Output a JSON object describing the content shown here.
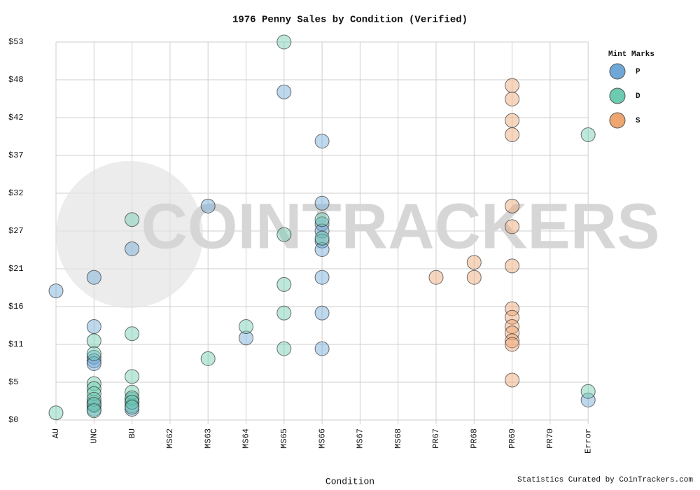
{
  "chart_data": {
    "type": "scatter",
    "title": "1976 Penny Sales by Condition (Verified)",
    "x_label": "Condition",
    "footer": "Statistics Curated by CoinTrackers.com",
    "watermark": "COINTRACKERS",
    "legend_title": "Mint Marks",
    "legend_position": "upper right",
    "grid": true,
    "categories": [
      "AU",
      "UNC",
      "BU",
      "MS62",
      "MS63",
      "MS64",
      "MS65",
      "MS66",
      "MS67",
      "MS68",
      "PR67",
      "PR68",
      "PR69",
      "PR70",
      "Error"
    ],
    "ylim": [
      0,
      53
    ],
    "yticks": [
      {
        "value": 0,
        "label": "$0"
      },
      {
        "value": 5.3,
        "label": "$5"
      },
      {
        "value": 10.6,
        "label": "$11"
      },
      {
        "value": 15.9,
        "label": "$16"
      },
      {
        "value": 21.2,
        "label": "$21"
      },
      {
        "value": 26.5,
        "label": "$27"
      },
      {
        "value": 31.8,
        "label": "$32"
      },
      {
        "value": 37.1,
        "label": "$37"
      },
      {
        "value": 42.4,
        "label": "$42"
      },
      {
        "value": 47.7,
        "label": "$48"
      },
      {
        "value": 53,
        "label": "$53"
      }
    ],
    "series": [
      {
        "name": "P",
        "color": "#6fa8d6",
        "x": [
          "AU",
          "UNC",
          "UNC",
          "UNC",
          "UNC",
          "UNC",
          "UNC",
          "UNC",
          "UNC",
          "BU",
          "BU",
          "BU",
          "BU",
          "BU",
          "MS63",
          "MS64",
          "MS65",
          "MS66",
          "MS66",
          "MS66",
          "MS66",
          "MS66",
          "MS66",
          "MS66",
          "MS66",
          "MS66",
          "Error"
        ],
        "values": [
          18.1,
          20.0,
          13.1,
          8.8,
          8.3,
          7.9,
          2.5,
          2.0,
          1.5,
          24.0,
          2.9,
          2.5,
          2.0,
          1.5,
          30.0,
          11.5,
          46.0,
          39.1,
          30.4,
          27.5,
          26.5,
          25.1,
          23.9,
          20.0,
          15.0,
          10.0,
          2.8
        ]
      },
      {
        "name": "D",
        "color": "#6ccbb0",
        "x": [
          "AU",
          "UNC",
          "UNC",
          "UNC",
          "UNC",
          "UNC",
          "UNC",
          "UNC",
          "UNC",
          "BU",
          "BU",
          "BU",
          "BU",
          "BU",
          "BU",
          "BU",
          "MS63",
          "MS64",
          "MS65",
          "MS65",
          "MS65",
          "MS65",
          "MS65",
          "MS66",
          "MS66",
          "Error",
          "Error"
        ],
        "values": [
          1.0,
          11.1,
          9.3,
          5.1,
          4.4,
          3.7,
          2.9,
          2.2,
          1.3,
          28.1,
          12.1,
          6.1,
          3.9,
          3.1,
          2.5,
          1.8,
          8.6,
          13.1,
          53.0,
          26.0,
          19.0,
          15.0,
          10.0,
          28.1,
          25.5,
          40.0,
          4.0
        ]
      },
      {
        "name": "S",
        "color": "#eea570",
        "x": [
          "PR67",
          "PR68",
          "PR68",
          "PR69",
          "PR69",
          "PR69",
          "PR69",
          "PR69",
          "PR69",
          "PR69",
          "PR69",
          "PR69",
          "PR69",
          "PR69",
          "PR69",
          "PR69",
          "PR69"
        ],
        "values": [
          20.0,
          22.1,
          20.0,
          46.9,
          45.0,
          42.0,
          40.0,
          30.0,
          27.1,
          21.6,
          15.6,
          14.4,
          13.1,
          12.2,
          11.1,
          10.6,
          5.6
        ]
      }
    ]
  }
}
